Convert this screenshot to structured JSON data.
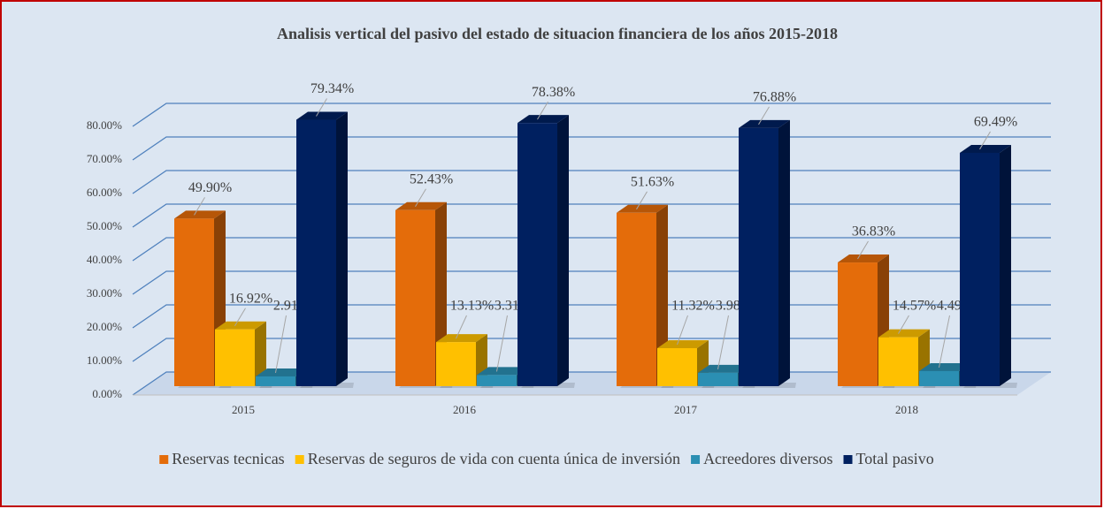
{
  "chart_data": {
    "type": "bar3d",
    "title": "Analisis vertical del pasivo del estado de situacion financiera de los años 2015-2018",
    "categories": [
      "2015",
      "2016",
      "2017",
      "2018"
    ],
    "series": [
      {
        "name": "Reservas tecnicas",
        "color": "#e46c0a",
        "values": [
          49.9,
          52.43,
          51.63,
          36.83
        ],
        "value_labels": [
          "49.90%",
          "52.43%",
          "51.63%",
          "36.83%"
        ]
      },
      {
        "name": "Reservas de seguros de vida con cuenta única de inversión",
        "color": "#ffc000",
        "values": [
          16.92,
          13.13,
          11.32,
          14.57
        ],
        "value_labels": [
          "16.92%",
          "13.13%",
          "11.32%",
          "14.57%"
        ]
      },
      {
        "name": "Acreedores diversos",
        "color": "#2b8fb3",
        "values": [
          2.91,
          3.31,
          3.98,
          4.49
        ],
        "value_labels": [
          "2.91%",
          "3.31%",
          "3.98%",
          "4.49%"
        ]
      },
      {
        "name": "Total pasivo",
        "color": "#002060",
        "values": [
          79.34,
          78.38,
          76.88,
          69.49
        ],
        "value_labels": [
          "79.34%",
          "78.38%",
          "76.88%",
          "69.49%"
        ]
      }
    ],
    "ylim": [
      0,
      80
    ],
    "yticks": [
      {
        "value": 0,
        "label": "0.00%"
      },
      {
        "value": 10,
        "label": "10.00%"
      },
      {
        "value": 20,
        "label": "20.00%"
      },
      {
        "value": 30,
        "label": "30.00%"
      },
      {
        "value": 40,
        "label": "40.00%"
      },
      {
        "value": 50,
        "label": "50.00%"
      },
      {
        "value": 60,
        "label": "60.00%"
      },
      {
        "value": 70,
        "label": "70.00%"
      },
      {
        "value": 80,
        "label": "80.00%"
      }
    ],
    "grid": true,
    "legend": "bottom"
  }
}
